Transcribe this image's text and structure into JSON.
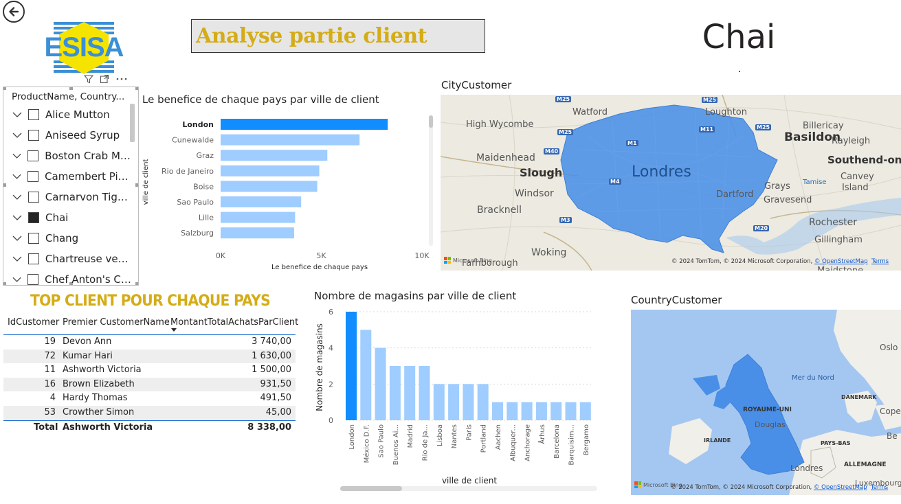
{
  "header": {
    "title": "Analyse partie client",
    "selected_product": "Chai",
    "logo_text": "ESISA"
  },
  "colors": {
    "accent_bar": "#118dff",
    "light_bar": "#9fcdff",
    "title_gold": "#d4ac16",
    "map_fill": "#4a90e2"
  },
  "icons": {
    "back": "back-arrow-icon",
    "filter": "filter-icon",
    "focus": "focus-mode-icon",
    "more": "more-options-icon"
  },
  "slicer": {
    "header": "ProductName, Country...",
    "items": [
      {
        "label": "Alice Mutton",
        "checked": false
      },
      {
        "label": "Aniseed Syrup",
        "checked": false
      },
      {
        "label": "Boston Crab Me...",
        "checked": false
      },
      {
        "label": "Camembert Pier...",
        "checked": false
      },
      {
        "label": "Carnarvon Tigers",
        "checked": false
      },
      {
        "label": "Chai",
        "checked": true
      },
      {
        "label": "Chang",
        "checked": false
      },
      {
        "label": "Chartreuse verte",
        "checked": false
      },
      {
        "label": "Chef Anton's Ca...",
        "checked": false
      }
    ]
  },
  "profit_chart": {
    "title": "Le benefice de chaque pays par ville de client",
    "xlabel": "Le benefice de chaque pays",
    "ylabel": "ville de client"
  },
  "stores_chart": {
    "title": "Nombre de magasins par ville de client",
    "xlabel": "ville de client",
    "ylabel": "Nombre de magasins"
  },
  "chart_data": [
    {
      "type": "bar",
      "orientation": "horizontal",
      "categories": [
        "London",
        "Cunewalde",
        "Graz",
        "Rio de Janeiro",
        "Boise",
        "Sao Paulo",
        "Lille",
        "Salzburg"
      ],
      "values": [
        8300,
        6900,
        5300,
        4900,
        4800,
        4000,
        3700,
        3650
      ],
      "highlight": "London",
      "xlim": [
        0,
        10000
      ],
      "xticks": [
        "0K",
        "5K",
        "10K"
      ],
      "title": "Le benefice de chaque pays par ville de client",
      "xlabel": "Le benefice de chaque pays",
      "ylabel": "ville de client"
    },
    {
      "type": "bar",
      "orientation": "vertical",
      "categories": [
        "London",
        "México D.F.",
        "Sao Paulo",
        "Buenos Ai...",
        "Madrid",
        "Rio de Ja...",
        "Lisboa",
        "Nantes",
        "Paris",
        "Portland",
        "Aachen",
        "Albuquer...",
        "Anchorage",
        "Århus",
        "Barcelona",
        "Barquisim...",
        "Bergamo"
      ],
      "values": [
        6,
        5,
        4,
        3,
        3,
        3,
        2,
        2,
        2,
        2,
        1,
        1,
        1,
        1,
        1,
        1,
        1
      ],
      "highlight": "London",
      "ylim": [
        0,
        6
      ],
      "yticks": [
        "0",
        "2",
        "4",
        "6"
      ],
      "title": "Nombre de magasins par ville de client",
      "xlabel": "ville de client",
      "ylabel": "Nombre de magasins"
    }
  ],
  "city_map": {
    "title": "CityCustomer",
    "labels": [
      {
        "text": "Watford",
        "cls": "m"
      },
      {
        "text": "Loughton",
        "cls": "m"
      },
      {
        "text": "High Wycombe",
        "cls": "m"
      },
      {
        "text": "Billericay",
        "cls": "m"
      },
      {
        "text": "Basildon",
        "cls": "b"
      },
      {
        "text": "Rayleigh",
        "cls": "m"
      },
      {
        "text": "Maidenhead",
        "cls": "m"
      },
      {
        "text": "Southend-on",
        "cls": "b"
      },
      {
        "text": "Slough",
        "cls": "b"
      },
      {
        "text": "Londres",
        "cls": "xl"
      },
      {
        "text": "Canvey",
        "cls": "m"
      },
      {
        "text": "Island",
        "cls": "m"
      },
      {
        "text": "Grays",
        "cls": "m"
      },
      {
        "text": "Tamise",
        "cls": "s"
      },
      {
        "text": "Windsor",
        "cls": "m"
      },
      {
        "text": "Dartford",
        "cls": "m"
      },
      {
        "text": "Gravesend",
        "cls": "m"
      },
      {
        "text": "Bracknell",
        "cls": "m"
      },
      {
        "text": "Rochester",
        "cls": "m"
      },
      {
        "text": "Gillingham",
        "cls": "m"
      },
      {
        "text": "Woking",
        "cls": "m"
      },
      {
        "text": "Farnborough",
        "cls": "m"
      },
      {
        "text": "Maidstone",
        "cls": "m"
      }
    ],
    "roads": [
      "M25",
      "M25",
      "M11",
      "M25",
      "M40",
      "M1",
      "M25",
      "M4",
      "M3",
      "M20"
    ],
    "attribution": "© 2024 TomTom, © 2024 Microsoft Corporation, ",
    "attribution_link": "© OpenStreetMap",
    "terms": "Terms",
    "ms_logo": "Microsoft Bing"
  },
  "country_map": {
    "title": "CountryCustomer",
    "labels": [
      {
        "text": "Oslo",
        "cls": "m"
      },
      {
        "text": "Mer du Nord",
        "cls": "m"
      },
      {
        "text": "DANEMARK",
        "cls": "cap"
      },
      {
        "text": "Copenh",
        "cls": "m"
      },
      {
        "text": "ROYAUME-UNI",
        "cls": "cap"
      },
      {
        "text": "Douglas",
        "cls": "m"
      },
      {
        "text": "IRLANDE",
        "cls": "cap"
      },
      {
        "text": "PAYS-BAS",
        "cls": "cap"
      },
      {
        "text": "Be",
        "cls": "m"
      },
      {
        "text": "Londres",
        "cls": "m"
      },
      {
        "text": "ALLEMAGNE",
        "cls": "cap"
      },
      {
        "text": "Luxembourg",
        "cls": "m"
      }
    ],
    "attribution": "© 2024 TomTom, © 2024 Microsoft Corporation, ",
    "attribution_link": "© OpenStreetMap",
    "terms": "Terms",
    "ms_logo": "Microsoft Bing"
  },
  "top_clients": {
    "title": "TOP CLIENT POUR CHAQUE PAYS",
    "columns": [
      "IdCustomer",
      "Premier CustomerName",
      "MontantTotalAchatsParClient"
    ],
    "rows": [
      {
        "id": "19",
        "name": "Devon Ann",
        "amount": "3 740,00"
      },
      {
        "id": "72",
        "name": "Kumar Hari",
        "amount": "1 630,00"
      },
      {
        "id": "11",
        "name": "Ashworth Victoria",
        "amount": "1 500,00"
      },
      {
        "id": "16",
        "name": "Brown Elizabeth",
        "amount": "931,50"
      },
      {
        "id": "4",
        "name": "Hardy Thomas",
        "amount": "491,50"
      },
      {
        "id": "53",
        "name": "Crowther Simon",
        "amount": "45,00"
      }
    ],
    "total": {
      "label": "Total",
      "name": "Ashworth Victoria",
      "amount": "8 338,00"
    }
  }
}
